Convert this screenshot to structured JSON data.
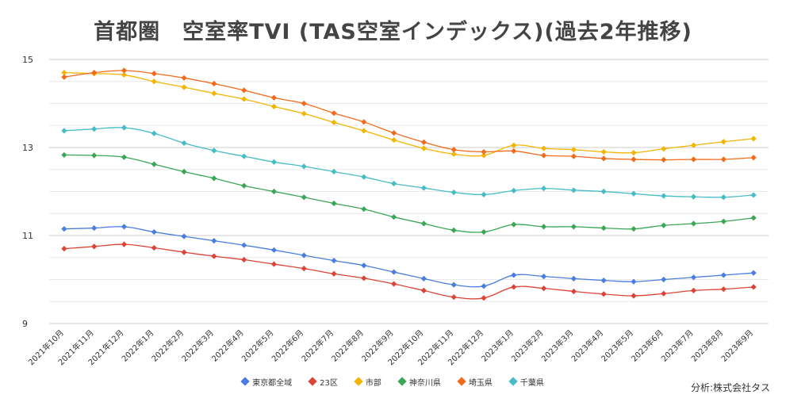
{
  "chart_data": {
    "type": "line",
    "title": "首都圏　空室率TVI (TAS空室インデックス)(過去2年推移)",
    "xlabel": "",
    "ylabel": "",
    "ylim": [
      9,
      15
    ],
    "yticks": [
      9,
      11,
      13,
      15
    ],
    "grid": true,
    "legend_position": "bottom",
    "categories": [
      "2021年10月",
      "2021年11月",
      "2021年12月",
      "2022年1月",
      "2022年2月",
      "2022年3月",
      "2022年4月",
      "2022年5月",
      "2022年6月",
      "2022年7月",
      "2022年8月",
      "2022年9月",
      "2022年10月",
      "2022年11月",
      "2022年12月",
      "2023年1月",
      "2023年2月",
      "2023年3月",
      "2023年4月",
      "2023年5月",
      "2023年6月",
      "2023年7月",
      "2023年8月",
      "2023年9月"
    ],
    "series": [
      {
        "name": "東京都全域",
        "color": "#4a7de0",
        "values": [
          11.15,
          11.17,
          11.2,
          11.08,
          10.98,
          10.88,
          10.78,
          10.67,
          10.55,
          10.43,
          10.32,
          10.17,
          10.02,
          9.88,
          9.85,
          10.1,
          10.07,
          10.02,
          9.98,
          9.95,
          10.0,
          10.05,
          10.1,
          10.15
        ]
      },
      {
        "name": "23区",
        "color": "#db4437",
        "values": [
          10.7,
          10.75,
          10.8,
          10.72,
          10.62,
          10.53,
          10.45,
          10.35,
          10.25,
          10.13,
          10.03,
          9.9,
          9.75,
          9.6,
          9.58,
          9.83,
          9.8,
          9.73,
          9.67,
          9.63,
          9.68,
          9.75,
          9.78,
          9.83
        ]
      },
      {
        "name": "市部",
        "color": "#f4b400",
        "values": [
          14.7,
          14.68,
          14.65,
          14.5,
          14.37,
          14.23,
          14.1,
          13.93,
          13.77,
          13.57,
          13.38,
          13.17,
          12.98,
          12.85,
          12.82,
          13.05,
          12.98,
          12.95,
          12.9,
          12.88,
          12.97,
          13.05,
          13.13,
          13.2
        ]
      },
      {
        "name": "神奈川県",
        "color": "#3aa757",
        "values": [
          12.83,
          12.82,
          12.78,
          12.62,
          12.45,
          12.3,
          12.13,
          12.0,
          11.87,
          11.73,
          11.6,
          11.42,
          11.27,
          11.12,
          11.08,
          11.25,
          11.2,
          11.2,
          11.17,
          11.15,
          11.23,
          11.27,
          11.32,
          11.4
        ]
      },
      {
        "name": "埼玉県",
        "color": "#f26b1d",
        "values": [
          14.6,
          14.7,
          14.75,
          14.68,
          14.58,
          14.45,
          14.3,
          14.13,
          14.0,
          13.78,
          13.58,
          13.33,
          13.12,
          12.95,
          12.9,
          12.92,
          12.82,
          12.8,
          12.75,
          12.73,
          12.72,
          12.73,
          12.73,
          12.77
        ]
      },
      {
        "name": "千葉県",
        "color": "#46bdc6",
        "values": [
          13.38,
          13.42,
          13.45,
          13.32,
          13.1,
          12.93,
          12.8,
          12.67,
          12.57,
          12.45,
          12.33,
          12.18,
          12.08,
          11.98,
          11.93,
          12.02,
          12.07,
          12.03,
          12.0,
          11.95,
          11.9,
          11.88,
          11.87,
          11.92
        ]
      }
    ]
  },
  "source_note": "分析:株式会社タス"
}
